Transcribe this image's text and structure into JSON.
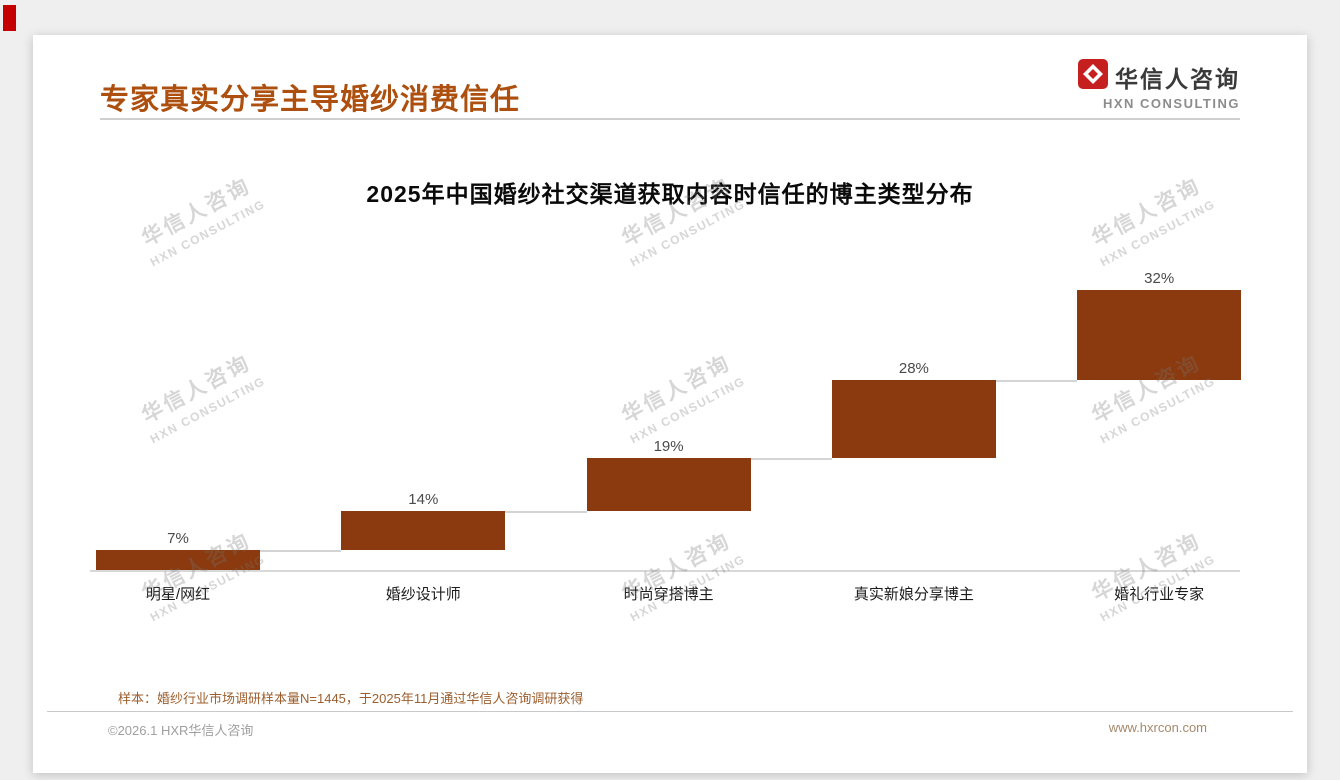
{
  "header": {
    "title": "专家真实分享主导婚纱消费信任",
    "logo_cn": "华信人咨询",
    "logo_en": "HXN CONSULTING"
  },
  "chart_data": {
    "type": "bar",
    "subtype": "waterfall",
    "title": "2025年中国婚纱社交渠道获取内容时信任的博主类型分布",
    "categories": [
      "明星/网红",
      "婚纱设计师",
      "时尚穿搭博主",
      "真实新娘分享博主",
      "婚礼行业专家"
    ],
    "values": [
      7,
      14,
      19,
      28,
      32
    ],
    "labels": [
      "7%",
      "14%",
      "19%",
      "28%",
      "32%"
    ],
    "bar_color": "#8a3a0e",
    "ylim": [
      0,
      100
    ],
    "grid": false,
    "legend": "none"
  },
  "watermark": {
    "line1": "华信人咨询",
    "line2": "HXN CONSULTING"
  },
  "footnote": {
    "text": "样本：婚纱行业市场调研样本量N=1445，于2025年11月通过华信人咨询调研获得"
  },
  "footer": {
    "left": "©2026.1 HXR华信人咨询",
    "right": "www.hxrcon.com"
  },
  "colors": {
    "title_accent": "#ad4f0e",
    "bar": "#8a3a0e",
    "corner_mark": "#c40000",
    "footnote_text": "#9c5e2d"
  }
}
